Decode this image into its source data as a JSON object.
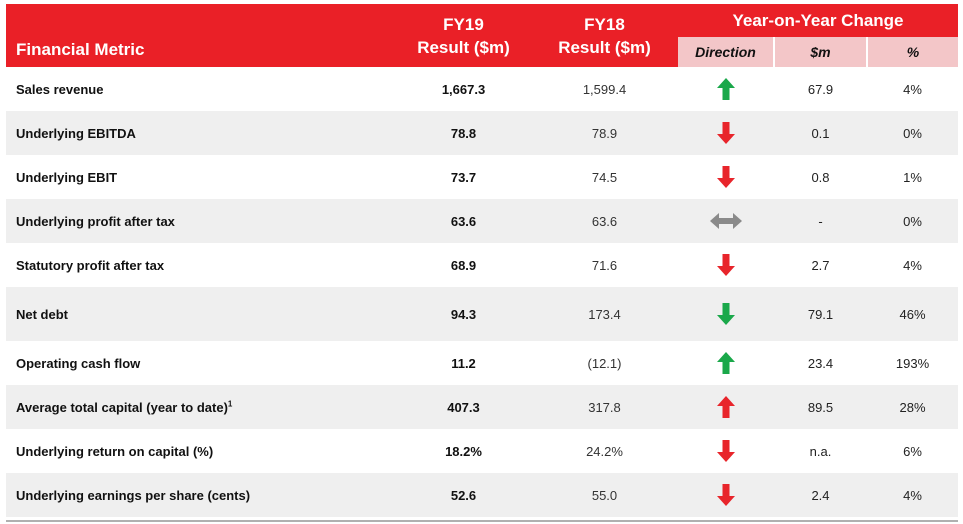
{
  "header": {
    "metric_label": "Financial Metric",
    "fy19_line1": "FY19",
    "fy19_line2": "Result ($m)",
    "fy18_line1": "FY18",
    "fy18_line2": "Result ($m)",
    "yoy_label": "Year-on-Year Change",
    "direction_label": "Direction",
    "dollar_label": "$m",
    "pct_label": "%"
  },
  "colors": {
    "header_red": "#ea2027",
    "subheader_pink": "#f3c6c8",
    "arrow_green": "#1aa84a",
    "arrow_red": "#e8252b",
    "arrow_grey": "#8a8a8a"
  },
  "rows": [
    {
      "metric": "Sales revenue",
      "sup": "",
      "fy19": "1,667.3",
      "fy18": "1,599.4",
      "direction": "up-green",
      "dollar": "67.9",
      "pct": "4%"
    },
    {
      "metric": "Underlying EBITDA",
      "sup": "",
      "fy19": "78.8",
      "fy18": "78.9",
      "direction": "down-red",
      "dollar": "0.1",
      "pct": "0%"
    },
    {
      "metric": "Underlying EBIT",
      "sup": "",
      "fy19": "73.7",
      "fy18": "74.5",
      "direction": "down-red",
      "dollar": "0.8",
      "pct": "1%"
    },
    {
      "metric": "Underlying profit after tax",
      "sup": "",
      "fy19": "63.6",
      "fy18": "63.6",
      "direction": "flat-grey",
      "dollar": "-",
      "pct": "0%"
    },
    {
      "metric": "Statutory profit after tax",
      "sup": "",
      "fy19": "68.9",
      "fy18": "71.6",
      "direction": "down-red",
      "dollar": "2.7",
      "pct": "4%"
    },
    {
      "metric": "Net debt",
      "sup": "",
      "fy19": "94.3",
      "fy18": "173.4",
      "direction": "down-green",
      "dollar": "79.1",
      "pct": "46%"
    },
    {
      "metric": "Operating cash flow",
      "sup": "",
      "fy19": "11.2",
      "fy18": "(12.1)",
      "direction": "up-green",
      "dollar": "23.4",
      "pct": "193%"
    },
    {
      "metric": "Average total capital (year to date)",
      "sup": "1",
      "fy19": "407.3",
      "fy18": "317.8",
      "direction": "up-red",
      "dollar": "89.5",
      "pct": "28%"
    },
    {
      "metric": "Underlying return on capital (%)",
      "sup": "",
      "fy19": "18.2%",
      "fy18": "24.2%",
      "direction": "down-red",
      "dollar": "n.a.",
      "pct": "6%"
    },
    {
      "metric": "Underlying earnings per share (cents)",
      "sup": "",
      "fy19": "52.6",
      "fy18": "55.0",
      "direction": "down-red",
      "dollar": "2.4",
      "pct": "4%"
    }
  ]
}
